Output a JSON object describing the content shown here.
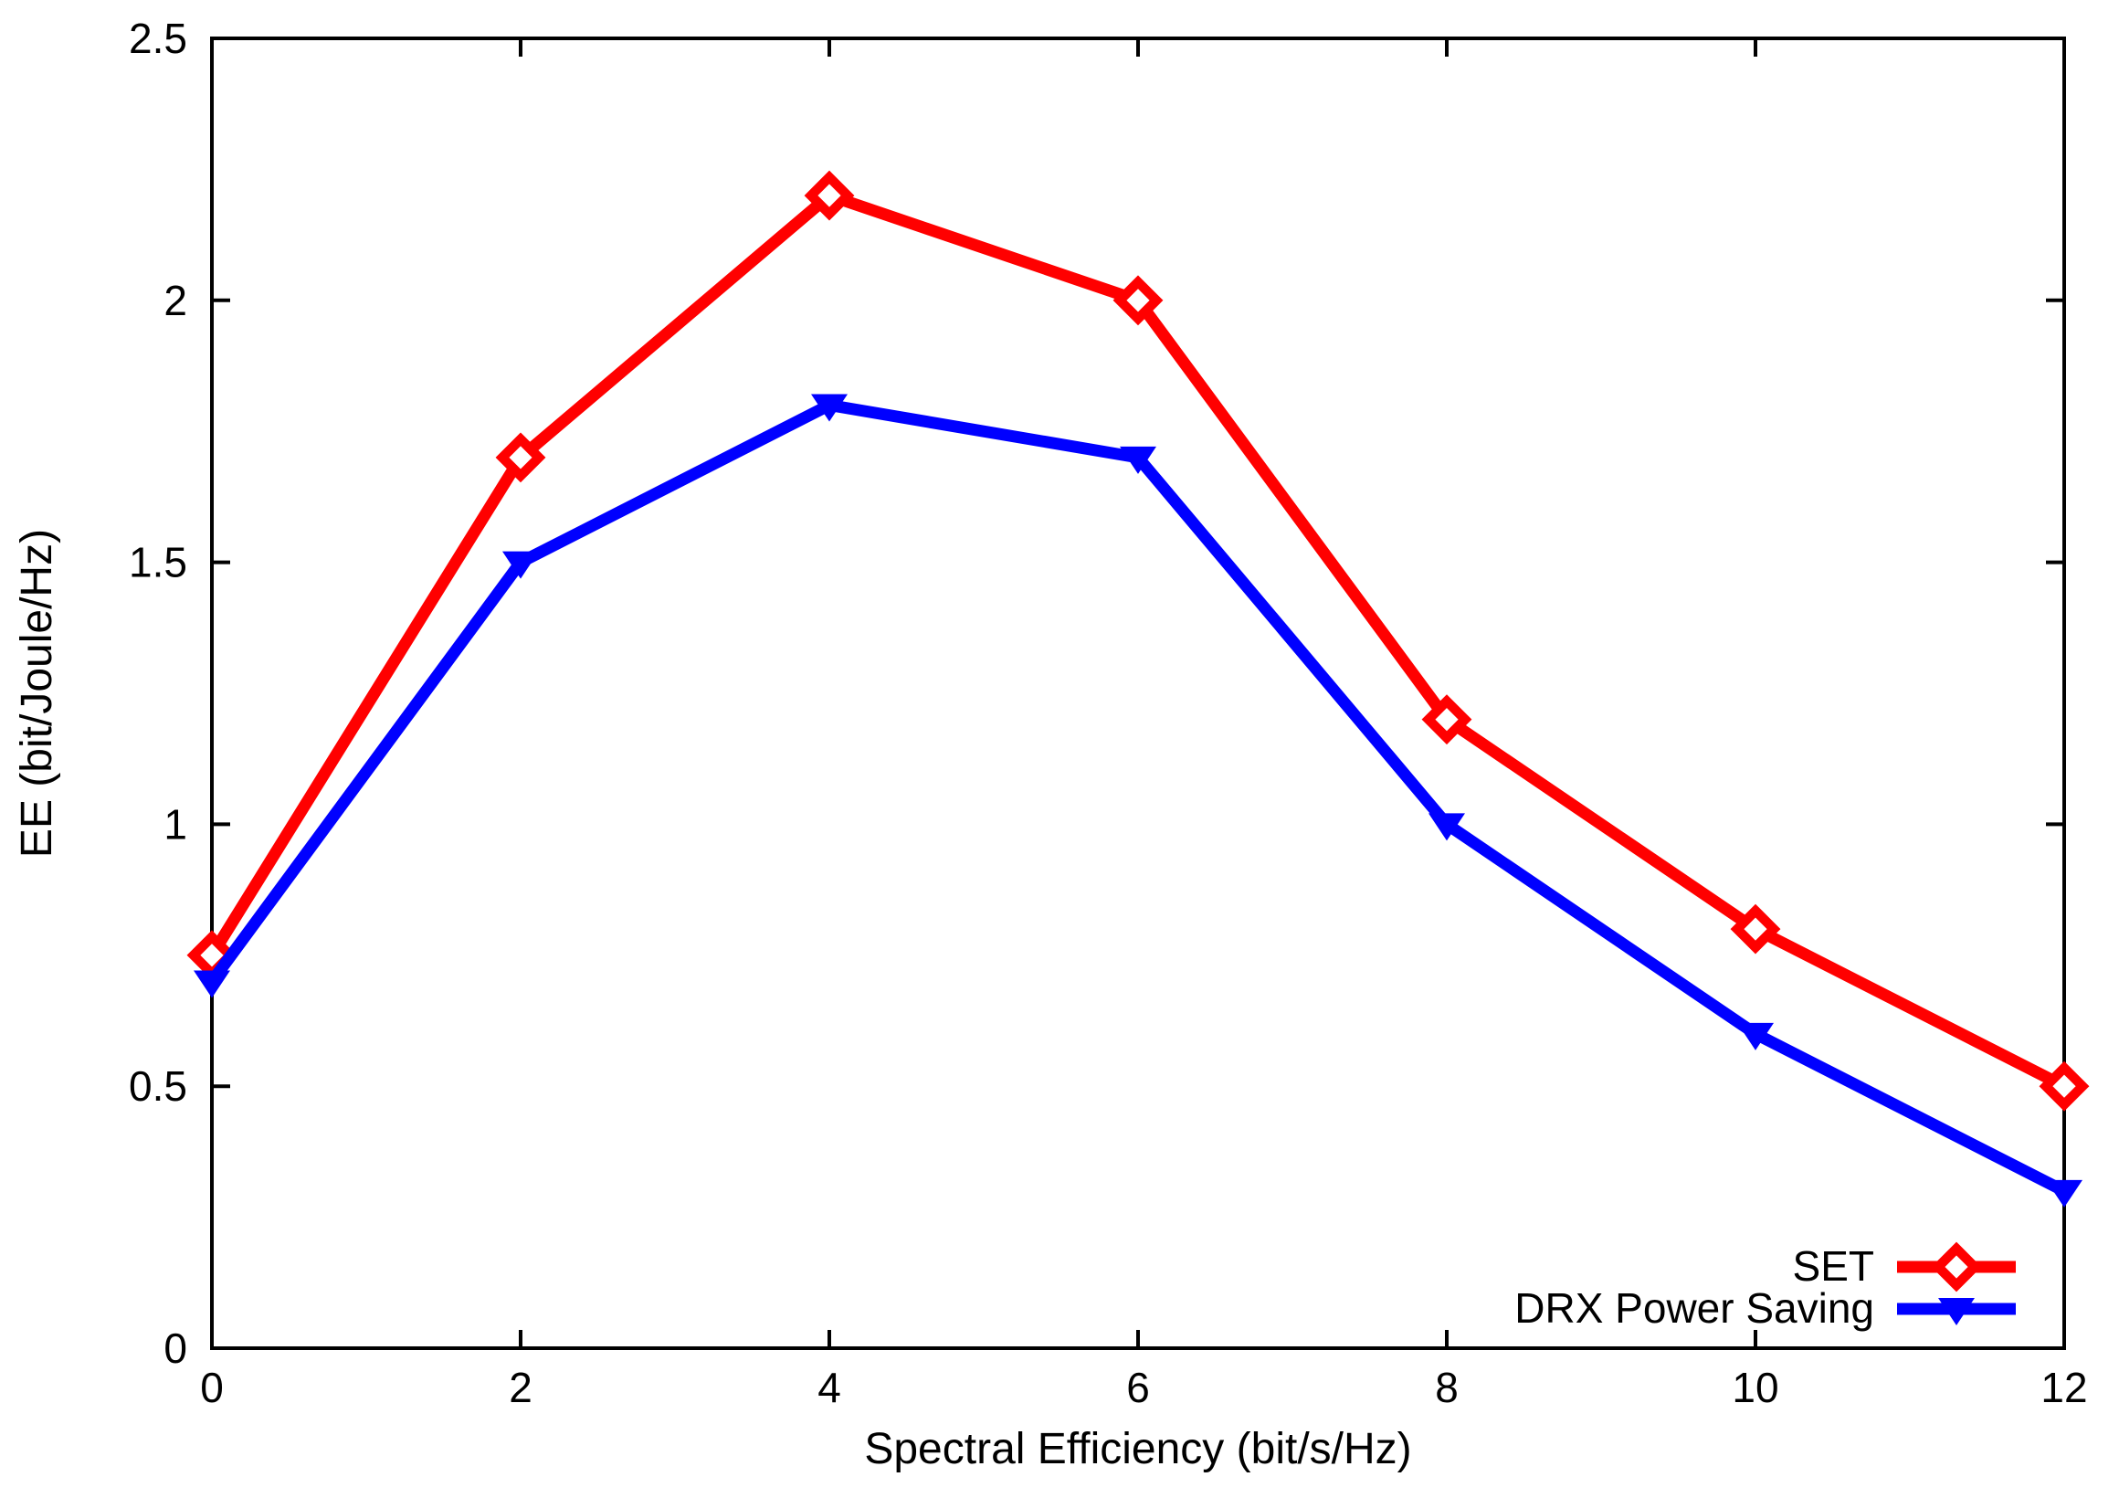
{
  "figure": {
    "background": "#ffffff",
    "frame_color": "#000000"
  },
  "chart_data": {
    "type": "line",
    "title": "",
    "xlabel": "Spectral Efficiency (bit/s/Hz)",
    "ylabel": "EE (bit/Joule/Hz)",
    "xlim": [
      0,
      12
    ],
    "ylim": [
      0,
      2.5
    ],
    "xticks": [
      0,
      2,
      4,
      6,
      8,
      10,
      12
    ],
    "xtick_labels": [
      "0",
      "2",
      "4",
      "6",
      "8",
      "10",
      "12"
    ],
    "yticks": [
      0,
      0.5,
      1,
      1.5,
      2,
      2.5
    ],
    "ytick_labels": [
      "0",
      "0.5",
      "1",
      "1.5",
      "2",
      "2.5"
    ],
    "grid": false,
    "legend_position": "inside-bottom-right",
    "x": [
      0,
      2,
      4,
      6,
      8,
      10,
      12
    ],
    "series": [
      {
        "name": "SET",
        "color": "#ff0000",
        "marker": "open-diamond",
        "values": [
          0.75,
          1.7,
          2.2,
          2.0,
          1.2,
          0.8,
          0.5
        ]
      },
      {
        "name": "DRX Power Saving",
        "color": "#0000ff",
        "marker": "filled-triangle-down",
        "values": [
          0.7,
          1.5,
          1.8,
          1.7,
          1.0,
          0.6,
          0.3
        ]
      }
    ]
  }
}
